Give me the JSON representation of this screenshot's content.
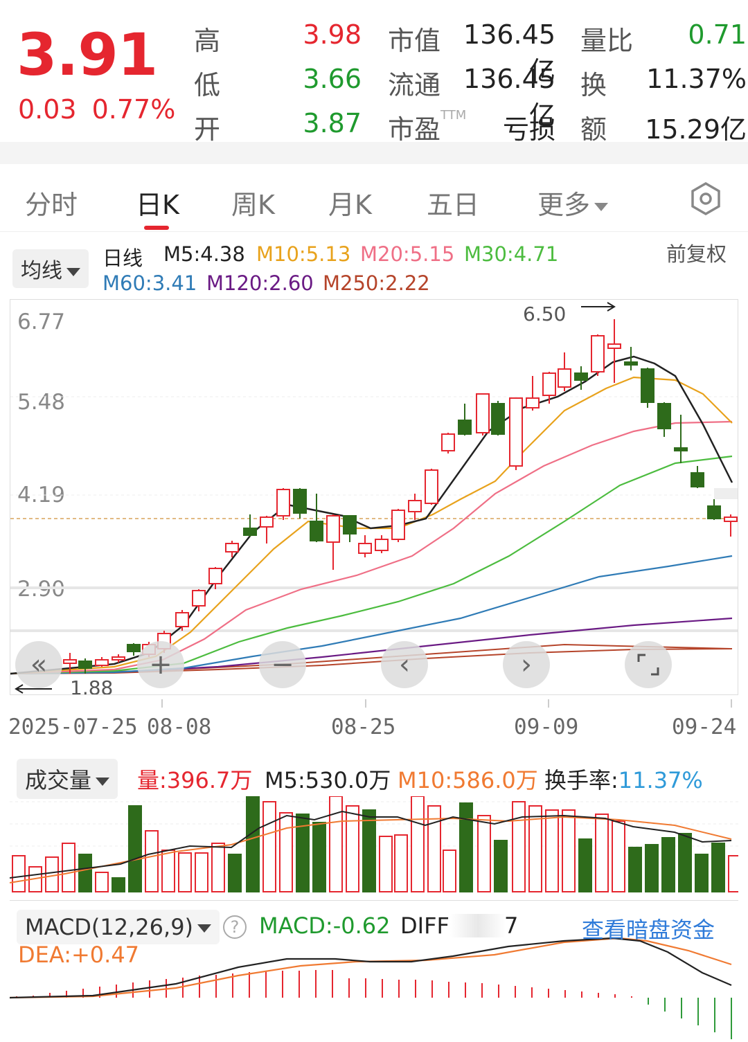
{
  "quote": {
    "price": "3.91",
    "change": "0.03",
    "change_pct": "0.77%",
    "high_label": "高",
    "high": "3.98",
    "low_label": "低",
    "low": "3.66",
    "open_label": "开",
    "open": "3.87",
    "mcap_label": "市值",
    "mcap": "136.45亿",
    "float_label": "流通",
    "float": "136.45亿",
    "pe_label": "市盈",
    "pe_sup": "TTM",
    "pe": "亏损",
    "vr_label": "量比",
    "vr": "0.71",
    "turnover_label": "换",
    "turnover": "11.37%",
    "amount_label": "额",
    "amount": "15.29亿"
  },
  "tabs": [
    {
      "label": "分时",
      "active": false
    },
    {
      "label": "日K",
      "active": true
    },
    {
      "label": "周K",
      "active": false
    },
    {
      "label": "月K",
      "active": false
    },
    {
      "label": "五日",
      "active": false
    },
    {
      "label": "更多",
      "active": false
    }
  ],
  "settings_icon": "gear-icon",
  "ma_bar": {
    "selector": "均线",
    "period": "日线",
    "items_row1": [
      {
        "text": "M5:4.38",
        "color": "#222222"
      },
      {
        "text": "M10:5.13",
        "color": "#e8a21c"
      },
      {
        "text": "M20:5.15",
        "color": "#ef6f86"
      },
      {
        "text": "M30:4.71",
        "color": "#4cbc3f"
      }
    ],
    "items_row2": [
      {
        "text": "M60:3.41",
        "color": "#2f7bb6"
      },
      {
        "text": "M120:2.60",
        "color": "#6a1a84"
      },
      {
        "text": "M250:2.22",
        "color": "#b5442a"
      }
    ],
    "adjust": "前复权"
  },
  "kline": {
    "y_ticks": [
      "6.77",
      "5.48",
      "4.19",
      "2.90"
    ],
    "max_marker": "6.50",
    "min_marker": "1.88",
    "x_ticks": [
      "2025-07-25",
      "08-08",
      "08-25",
      "09-09",
      "09-24"
    ],
    "controls": [
      "zoom-out-icon",
      "zoom-in-icon",
      "minus-icon",
      "chevron-left-icon",
      "chevron-right-icon",
      "fullscreen-icon"
    ]
  },
  "volume": {
    "selector": "成交量",
    "vol_label": "量:",
    "vol": "396.7万",
    "m5": "M5:530.0万",
    "m10": "M10:586.0万",
    "turnover_label": "换手率:",
    "turnover": "11.37%"
  },
  "macd": {
    "selector": "MACD(12,26,9)",
    "macd": "MACD:-0.62",
    "diff": "DIFF",
    "diff_tail": "7",
    "dea": "DEA:+0.47",
    "link": "查看暗盘资金"
  },
  "colors": {
    "up": "#e5262f",
    "down": "#2e6b1b",
    "link": "#2f7bd9"
  }
}
